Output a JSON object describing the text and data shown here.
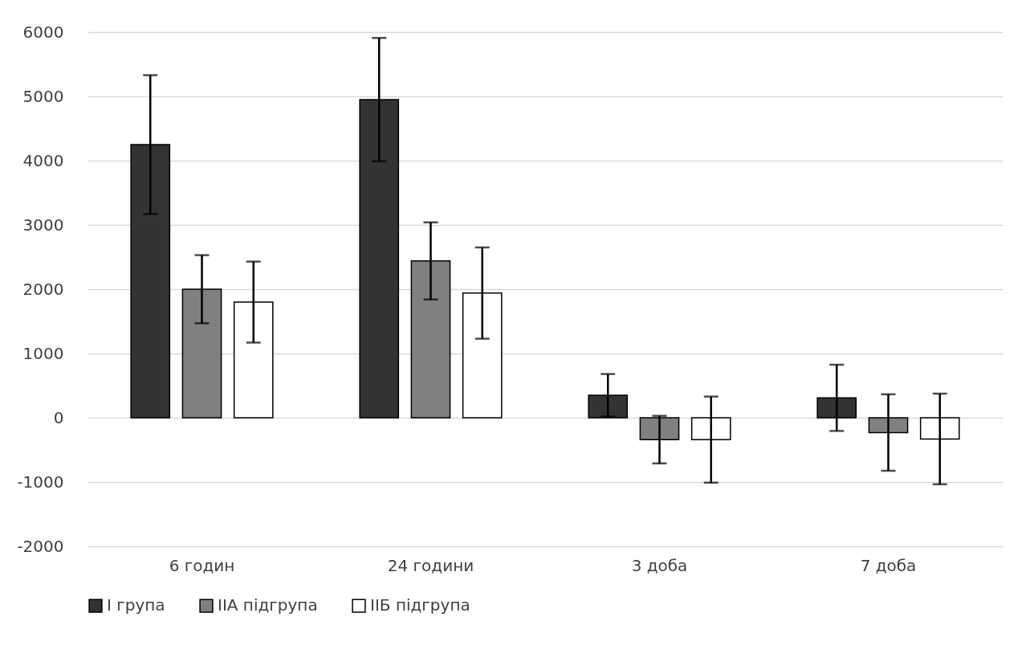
{
  "chart_data": {
    "type": "bar",
    "categories": [
      "6 годин",
      "24 години",
      "3 доба",
      "7 доба"
    ],
    "series": [
      {
        "name": "І група",
        "color": "#333333",
        "values": [
          4250,
          4950,
          350,
          310
        ],
        "errors": [
          1080,
          960,
          330,
          515
        ]
      },
      {
        "name": "ІІА підгрупа",
        "color": "#808080",
        "values": [
          2000,
          2440,
          -340,
          -230
        ],
        "errors": [
          530,
          600,
          370,
          595
        ]
      },
      {
        "name": "ІІБ підгрупа",
        "color": "#ffffff",
        "values": [
          1800,
          1940,
          -340,
          -330
        ],
        "errors": [
          630,
          710,
          670,
          705
        ]
      }
    ],
    "ylim": [
      -2000,
      6000
    ],
    "yticks": [
      -2000,
      -1000,
      0,
      1000,
      2000,
      3000,
      4000,
      5000,
      6000
    ],
    "grid": "y",
    "legend": "bottom"
  }
}
